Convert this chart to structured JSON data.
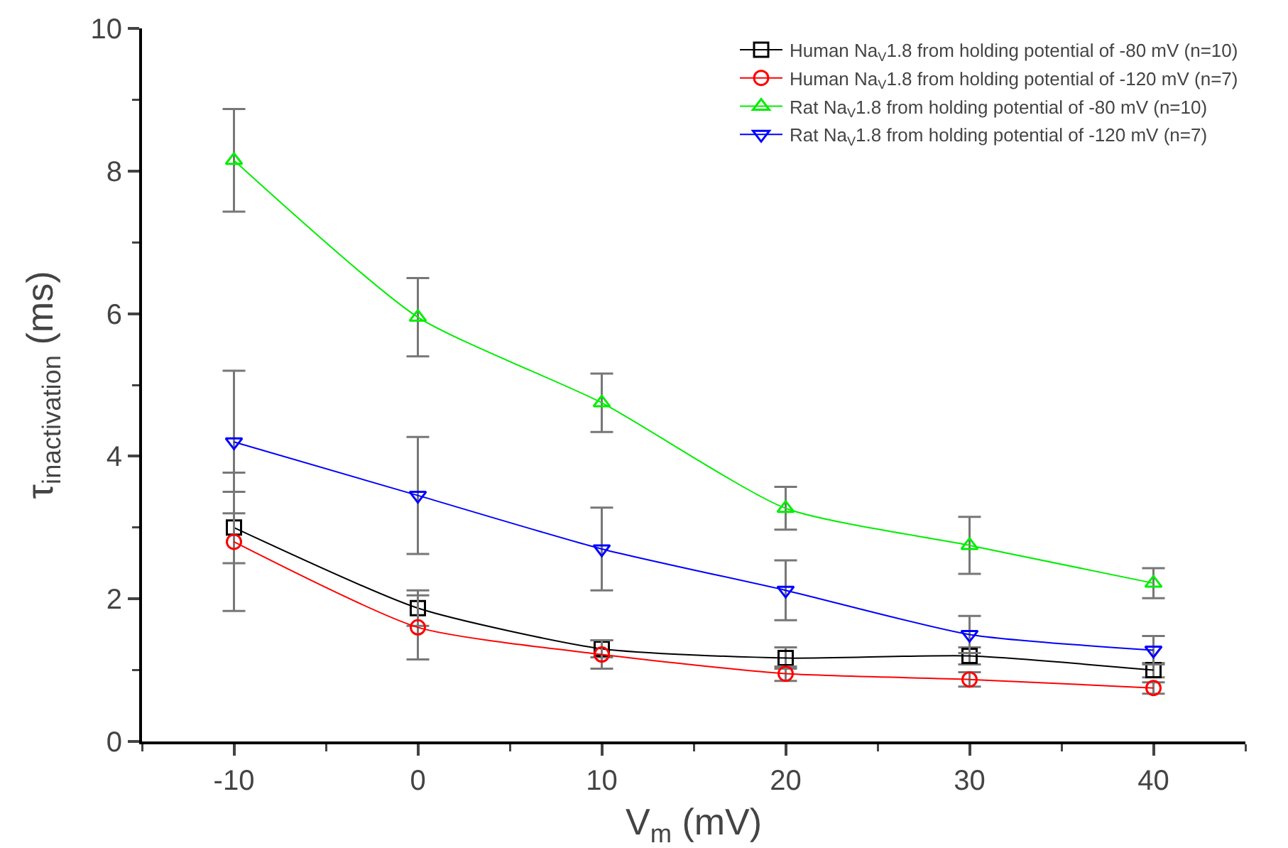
{
  "chart_data": {
    "type": "line",
    "xlabel": "V$_{m}$ (mV)",
    "ylabel": "τ$_{inactivation}$ (ms)",
    "x": [
      -10,
      0,
      10,
      20,
      30,
      40
    ],
    "series": [
      {
        "name": "Human Na$_{V}$1.8 from holding potential of -80 mV (n=10)",
        "color": "#000000",
        "marker": "square",
        "values": [
          3.0,
          1.87,
          1.3,
          1.17,
          1.2,
          1.0
        ],
        "errors": [
          0.5,
          0.25,
          0.12,
          0.15,
          0.12,
          0.1
        ]
      },
      {
        "name": "Human Na$_{V}$1.8 from holding potential of -120 mV (n=7)",
        "color": "#ff0000",
        "marker": "circle",
        "values": [
          2.8,
          1.6,
          1.22,
          0.95,
          0.87,
          0.75
        ],
        "errors": [
          0.97,
          0.45,
          0.2,
          0.1,
          0.1,
          0.08
        ]
      },
      {
        "name": "Rat Na$_{V}$1.8 from holding potential of -80 mV (n=10)",
        "color": "#00ee00",
        "marker": "triangle",
        "values": [
          8.15,
          5.95,
          4.75,
          3.27,
          2.75,
          2.22
        ],
        "errors": [
          0.72,
          0.55,
          0.41,
          0.3,
          0.4,
          0.21
        ]
      },
      {
        "name": "Rat Na$_{V}$1.8 from holding potential of -120 mV (n=7)",
        "color": "#0000ff",
        "marker": "triangle-down",
        "values": [
          4.2,
          3.45,
          2.7,
          2.12,
          1.5,
          1.28
        ],
        "errors": [
          1.0,
          0.82,
          0.58,
          0.42,
          0.26,
          0.2
        ]
      }
    ],
    "xlim": [
      -15,
      45
    ],
    "xticks": [
      -10,
      0,
      10,
      20,
      30,
      40
    ],
    "ylim": [
      0,
      10
    ],
    "yticks": [
      0,
      2,
      4,
      6,
      8,
      10
    ],
    "grid": false,
    "legend": "top right",
    "line_style": "solid"
  }
}
